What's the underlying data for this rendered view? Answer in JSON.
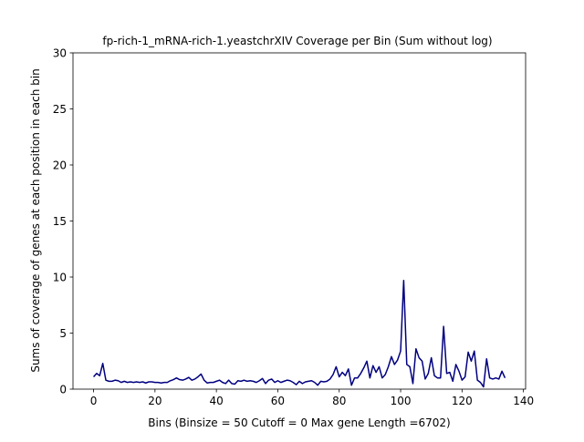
{
  "chart_data": {
    "type": "line",
    "title": "fp-rich-1_mRNA-rich-1.yeastchrXIV Coverage per Bin (Sum without log)",
    "xlabel": "Bins  (Binsize = 50 Cutoff = 0 Max gene Length =6702)",
    "ylabel": "Sums of coverage of genes at each position in each bin",
    "xlim": [
      -6.7,
      140.7
    ],
    "ylim": [
      0,
      30
    ],
    "xticks": [
      0,
      20,
      40,
      60,
      80,
      100,
      120,
      140
    ],
    "yticks": [
      0,
      5,
      10,
      15,
      20,
      25,
      30
    ],
    "grid": false,
    "series": [
      {
        "color": "#000080",
        "x": [
          0,
          1,
          2,
          3,
          4,
          5,
          6,
          7,
          8,
          9,
          10,
          11,
          12,
          13,
          14,
          15,
          16,
          17,
          18,
          19,
          20,
          21,
          22,
          23,
          24,
          25,
          26,
          27,
          28,
          29,
          30,
          31,
          32,
          33,
          34,
          35,
          36,
          37,
          38,
          39,
          40,
          41,
          42,
          43,
          44,
          45,
          46,
          47,
          48,
          49,
          50,
          51,
          52,
          53,
          54,
          55,
          56,
          57,
          58,
          59,
          60,
          61,
          62,
          63,
          64,
          65,
          66,
          67,
          68,
          69,
          70,
          71,
          72,
          73,
          74,
          75,
          76,
          77,
          78,
          79,
          80,
          81,
          82,
          83,
          84,
          85,
          86,
          87,
          88,
          89,
          90,
          91,
          92,
          93,
          94,
          95,
          96,
          97,
          98,
          99,
          100,
          101,
          102,
          103,
          104,
          105,
          106,
          107,
          108,
          109,
          110,
          111,
          112,
          113,
          114,
          115,
          116,
          117,
          118,
          119,
          120,
          121,
          122,
          123,
          124,
          125,
          126,
          127,
          128,
          129,
          130,
          131,
          132,
          133,
          134
        ],
        "y": [
          1.1,
          1.4,
          1.2,
          2.3,
          0.8,
          0.7,
          0.7,
          0.8,
          0.75,
          0.6,
          0.7,
          0.6,
          0.65,
          0.6,
          0.65,
          0.6,
          0.65,
          0.55,
          0.65,
          0.65,
          0.6,
          0.6,
          0.55,
          0.6,
          0.6,
          0.75,
          0.85,
          1.0,
          0.85,
          0.8,
          0.9,
          1.05,
          0.8,
          0.9,
          1.1,
          1.35,
          0.8,
          0.55,
          0.6,
          0.6,
          0.7,
          0.8,
          0.6,
          0.5,
          0.8,
          0.5,
          0.45,
          0.75,
          0.7,
          0.8,
          0.7,
          0.75,
          0.7,
          0.6,
          0.75,
          0.95,
          0.5,
          0.8,
          0.9,
          0.6,
          0.75,
          0.6,
          0.7,
          0.8,
          0.75,
          0.6,
          0.4,
          0.7,
          0.5,
          0.65,
          0.7,
          0.75,
          0.6,
          0.35,
          0.7,
          0.65,
          0.7,
          0.9,
          1.3,
          2.0,
          1.1,
          1.5,
          1.2,
          1.8,
          0.35,
          1.0,
          1.0,
          1.4,
          1.9,
          2.5,
          1.0,
          2.1,
          1.5,
          2.0,
          1.0,
          1.3,
          2.0,
          2.9,
          2.2,
          2.6,
          3.4,
          9.7,
          2.2,
          2.0,
          0.5,
          3.6,
          2.8,
          2.5,
          0.9,
          1.4,
          2.8,
          1.2,
          1.0,
          1.0,
          5.6,
          1.4,
          1.5,
          0.7,
          2.2,
          1.6,
          0.8,
          1.1,
          3.3,
          2.5,
          3.4,
          0.8,
          0.6,
          0.2,
          2.7,
          1.0,
          0.9,
          1.0,
          0.9,
          1.6,
          1.0
        ]
      }
    ]
  }
}
